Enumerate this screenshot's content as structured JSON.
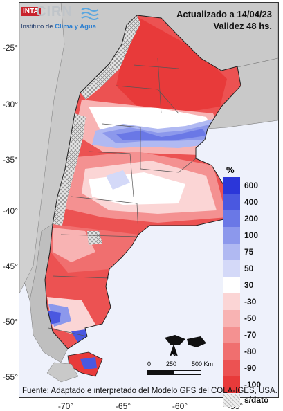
{
  "header": {
    "logo_badge": "INTA",
    "logo_name": "CIRN",
    "logo_institute_prefix": "Instituto de",
    "logo_institute_name": "Clima y Agua",
    "updated": "Actualizado a 14/04/23",
    "validity": "Validez 48 hs."
  },
  "axes": {
    "lat_labels": [
      "-25°",
      "-30°",
      "-35°",
      "-40°",
      "-45°",
      "-50°",
      "-55°"
    ],
    "lon_labels": [
      "-70°",
      "-65°",
      "-60°",
      "-55°"
    ]
  },
  "legend": {
    "title": "%",
    "items": [
      {
        "label": "600",
        "color": "#2b36d9"
      },
      {
        "label": "400",
        "color": "#4a58e0"
      },
      {
        "label": "200",
        "color": "#6a78e6"
      },
      {
        "label": "100",
        "color": "#8c98ec"
      },
      {
        "label": "75",
        "color": "#b0b9f2"
      },
      {
        "label": "50",
        "color": "#d4d9f8"
      },
      {
        "label": "30",
        "color": "#ffffff"
      },
      {
        "label": "-30",
        "color": "#fbd5d5"
      },
      {
        "label": "-50",
        "color": "#f8b3b3"
      },
      {
        "label": "-70",
        "color": "#f49191"
      },
      {
        "label": "-80",
        "color": "#f06f6f"
      },
      {
        "label": "-90",
        "color": "#ec5252"
      },
      {
        "label": "-100",
        "color": "#e83a3a"
      }
    ],
    "nodata_label": "s/dato"
  },
  "scale_bar": {
    "labels": [
      "0",
      "250",
      "500 Km"
    ],
    "north": "N"
  },
  "source": "Fuente: Adaptado e interpretado del Modelo GFS del COLA-IGES, USA."
}
